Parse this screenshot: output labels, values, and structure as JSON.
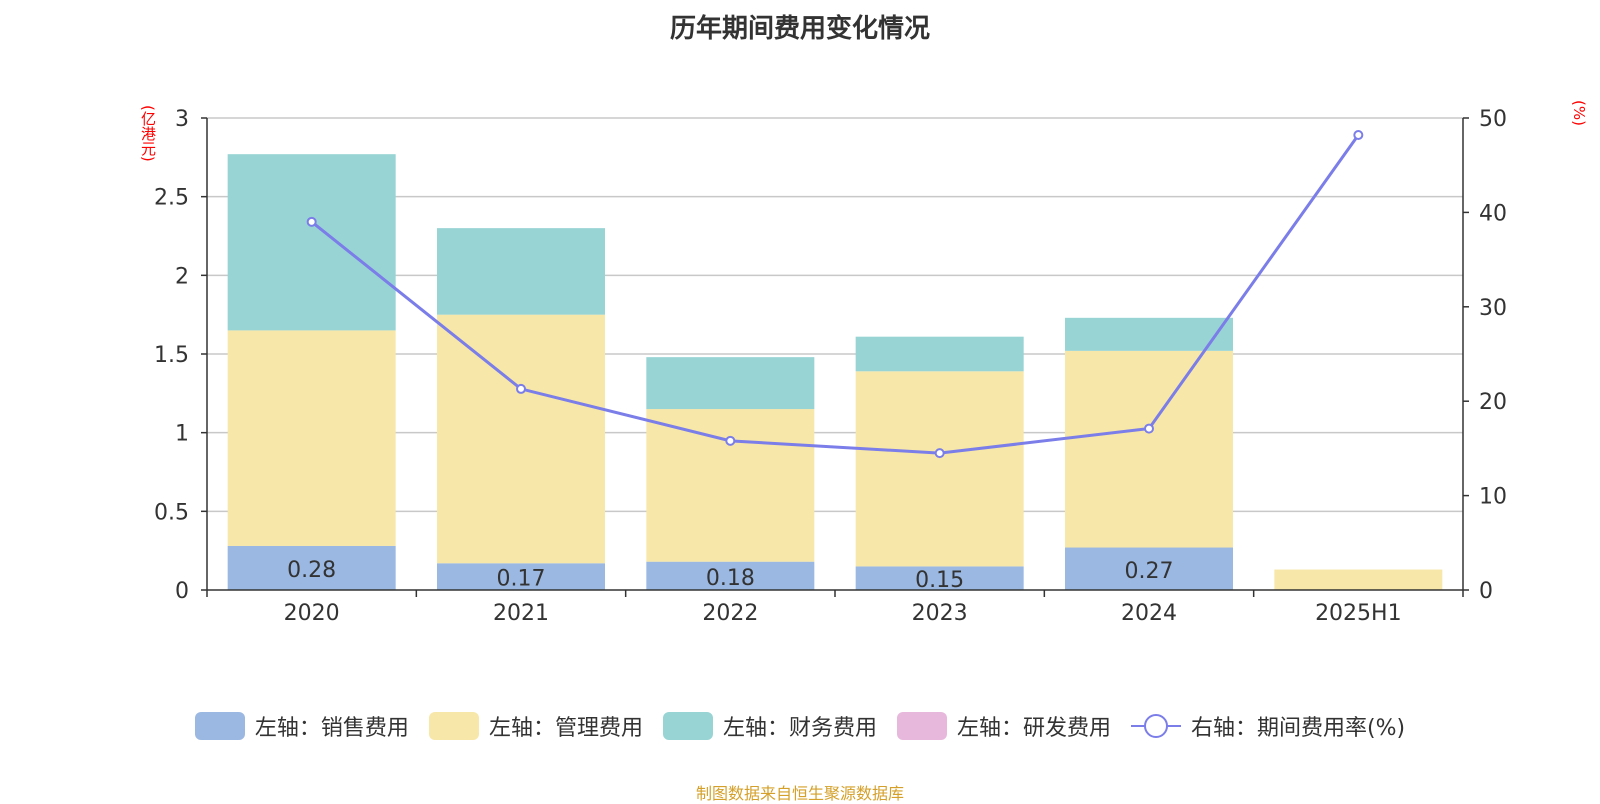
{
  "title": "历年期间费用变化情况",
  "left_unit": "(亿港元)",
  "right_unit": "(%)",
  "source": "制图数据来自恒生聚源数据库",
  "colors": {
    "sales": "#9bb8e2",
    "admin": "#f7e7a8",
    "finance": "#98d4d4",
    "rd": "#e7b8dc",
    "line": "#7b7de9"
  },
  "legend": [
    {
      "label": "左轴：销售费用",
      "key": "sales",
      "kind": "bar"
    },
    {
      "label": "左轴：管理费用",
      "key": "admin",
      "kind": "bar"
    },
    {
      "label": "左轴：财务费用",
      "key": "finance",
      "kind": "bar"
    },
    {
      "label": "左轴：研发费用",
      "key": "rd",
      "kind": "bar"
    },
    {
      "label": "右轴：期间费用率(%)",
      "key": "line",
      "kind": "line"
    }
  ],
  "chart_data": {
    "type": "bar",
    "stacked": true,
    "title": "历年期间费用变化情况",
    "categories": [
      "2020",
      "2021",
      "2022",
      "2023",
      "2024",
      "2025H1"
    ],
    "y_left": {
      "label": "(亿港元)",
      "range": [
        0,
        3
      ],
      "ticks": [
        "0",
        "0.5",
        "1",
        "1.5",
        "2",
        "2.5",
        "3"
      ]
    },
    "y_right": {
      "label": "(%)",
      "range": [
        0,
        50
      ],
      "ticks": [
        "0",
        "10",
        "20",
        "30",
        "40",
        "50"
      ]
    },
    "series": [
      {
        "name": "左轴：销售费用",
        "key": "sales",
        "axis": "left",
        "values": [
          0.28,
          0.17,
          0.18,
          0.15,
          0.27,
          0
        ],
        "labels": [
          "0.28",
          "0.17",
          "0.18",
          "0.15",
          "0.27",
          ""
        ]
      },
      {
        "name": "左轴：管理费用",
        "key": "admin",
        "axis": "left",
        "values": [
          1.37,
          1.58,
          0.97,
          1.24,
          1.25,
          0.13
        ]
      },
      {
        "name": "左轴：财务费用",
        "key": "finance",
        "axis": "left",
        "values": [
          1.12,
          0.55,
          0.33,
          0.22,
          0.21,
          0
        ]
      },
      {
        "name": "左轴：研发费用",
        "key": "rd",
        "axis": "left",
        "values": [
          0,
          0,
          0,
          0,
          0,
          0
        ]
      },
      {
        "name": "右轴：期间费用率(%)",
        "key": "line",
        "axis": "right",
        "type": "line",
        "values": [
          39,
          21.3,
          15.8,
          14.5,
          17.1,
          48.2
        ]
      }
    ],
    "grid": true,
    "legend_position": "bottom"
  }
}
